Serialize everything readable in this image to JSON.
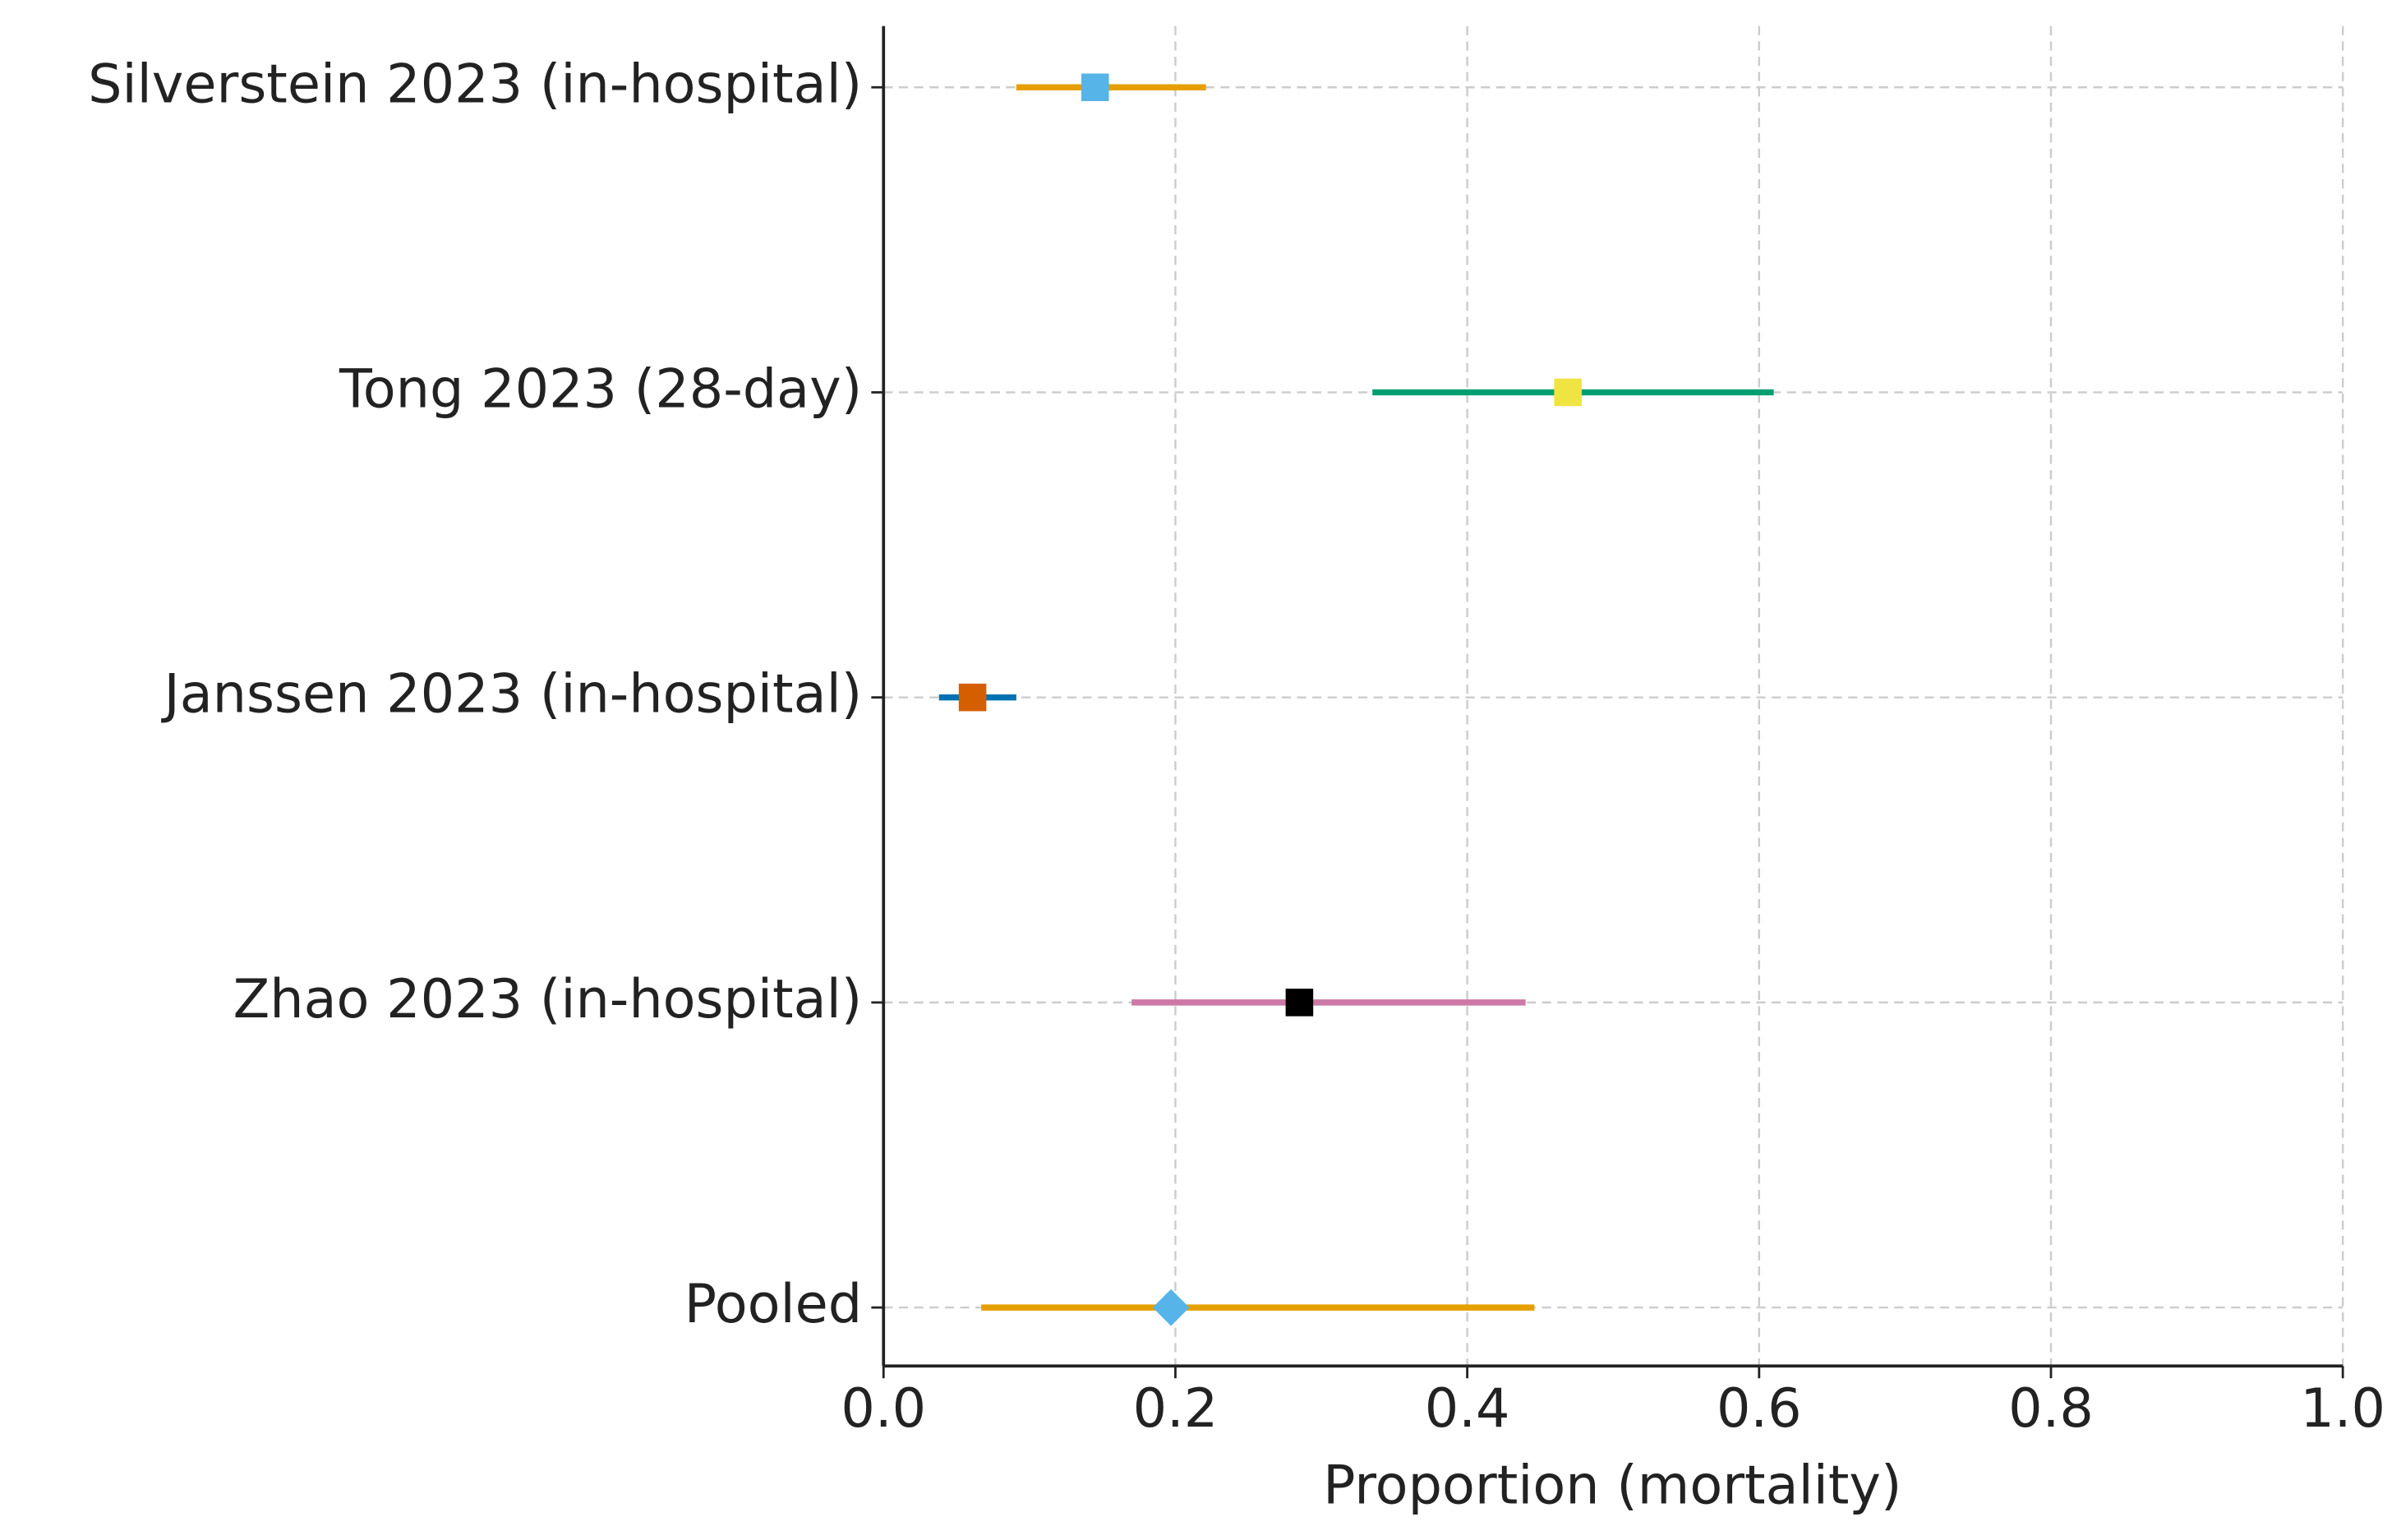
{
  "chart_data": {
    "type": "forest",
    "categories": [
      "Silverstein 2023 (in-hospital)",
      "Tong 2023 (28-day)",
      "Janssen 2023 (in-hospital)",
      "Zhao 2023 (in-hospital)",
      "Pooled"
    ],
    "values": [
      0.145,
      0.469,
      0.061,
      0.285,
      0.197
    ],
    "lower": [
      0.091,
      0.335,
      0.038,
      0.17,
      0.067
    ],
    "upper": [
      0.221,
      0.61,
      0.091,
      0.44,
      0.446
    ],
    "ci_colors": [
      "#E69F00",
      "#009E73",
      "#0072B2",
      "#CC79A7",
      "#E69F00"
    ],
    "point_colors": [
      "#56B4E9",
      "#F0E442",
      "#D55E00",
      "#000000",
      "#56B4E9"
    ],
    "markers": [
      "square",
      "square",
      "square",
      "square",
      "diamond"
    ],
    "xlabel": "Proportion (mortality)",
    "xlim": [
      0,
      1
    ],
    "xticks": [
      {
        "value": 0,
        "label": "0.0"
      },
      0.2,
      0.4,
      0.6,
      0.8,
      {
        "value": 1,
        "label": "1.0"
      }
    ],
    "grid": true
  }
}
